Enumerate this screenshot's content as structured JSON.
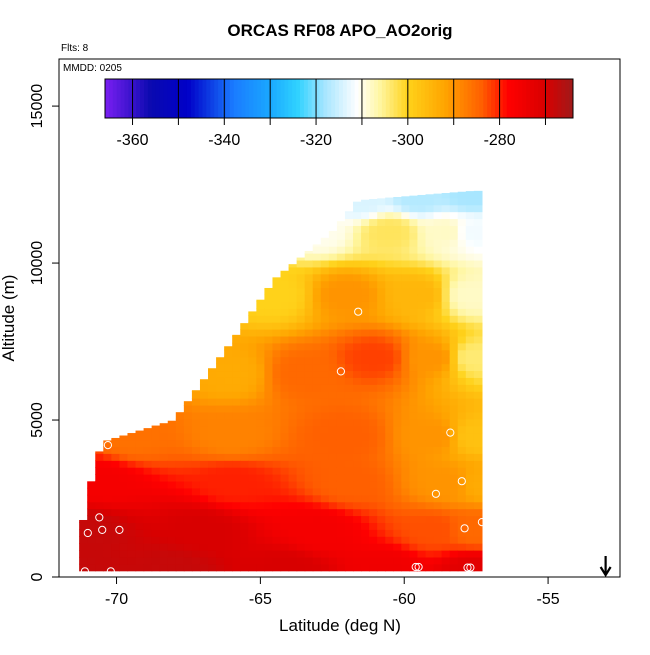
{
  "chart_data": {
    "type": "heatmap",
    "title": "ORCAS RF08 APO_AO2orig",
    "corner_note": "Flts: 8",
    "inner_note": "MMDD: 0205",
    "xlabel": "Latitude (deg N)",
    "ylabel": "Altitude (m)",
    "xlim": [
      -72,
      -52.5
    ],
    "ylim": [
      0,
      16500
    ],
    "xticks": [
      -70,
      -65,
      -60,
      -55
    ],
    "xtick_labels": [
      "-70",
      "-65",
      "-60",
      "-55"
    ],
    "yticks": [
      0,
      5000,
      10000,
      15000
    ],
    "ytick_labels": [
      "0",
      "5000",
      "10000",
      "15000"
    ],
    "colorbar": {
      "range": [
        -366,
        -264
      ],
      "ticks": [
        -360,
        -340,
        -320,
        -300,
        -280
      ],
      "tick_labels": [
        "-360",
        "-340",
        "-320",
        "-300",
        "-280"
      ],
      "stops": [
        {
          "v": -366,
          "c": "#7a1ff2"
        },
        {
          "v": -356,
          "c": "#0a0ab0"
        },
        {
          "v": -348,
          "c": "#0000c8"
        },
        {
          "v": -338,
          "c": "#1a7bff"
        },
        {
          "v": -330,
          "c": "#1aa8ff"
        },
        {
          "v": -324,
          "c": "#30d2ff"
        },
        {
          "v": -318,
          "c": "#a8e6ff"
        },
        {
          "v": -311,
          "c": "#ffffff"
        },
        {
          "v": -306,
          "c": "#fff6a0"
        },
        {
          "v": -300,
          "c": "#ffd21a"
        },
        {
          "v": -292,
          "c": "#ffa500"
        },
        {
          "v": -284,
          "c": "#ff6000"
        },
        {
          "v": -278,
          "c": "#ff0000"
        },
        {
          "v": -270,
          "c": "#d80000"
        },
        {
          "v": -264,
          "c": "#a01a1a"
        }
      ]
    },
    "field_region": {
      "lat_extent": [
        -71.3,
        -57.3
      ],
      "top_boundary": [
        [
          -71.3,
          1200
        ],
        [
          -70.8,
          3400
        ],
        [
          -70.5,
          4300
        ],
        [
          -68.0,
          5000
        ],
        [
          -66.0,
          7500
        ],
        [
          -64.5,
          9500
        ],
        [
          -62.5,
          11000
        ],
        [
          -61.6,
          12000
        ],
        [
          -59.0,
          12200
        ],
        [
          -57.6,
          12300
        ]
      ],
      "bottom_boundary": [
        [
          -71.3,
          200
        ],
        [
          -57.6,
          200
        ]
      ]
    },
    "field_values": [
      [
        -71.3,
        200,
        -268
      ],
      [
        -68.0,
        200,
        -268
      ],
      [
        -64.0,
        200,
        -270
      ],
      [
        -60.5,
        200,
        -275
      ],
      [
        -57.6,
        200,
        -272
      ],
      [
        -71.0,
        1500,
        -268
      ],
      [
        -67.0,
        1500,
        -270
      ],
      [
        -63.0,
        1500,
        -276
      ],
      [
        -59.0,
        1500,
        -283
      ],
      [
        -57.5,
        1500,
        -285
      ],
      [
        -70.5,
        3000,
        -276
      ],
      [
        -66.0,
        3000,
        -280
      ],
      [
        -62.0,
        3000,
        -284
      ],
      [
        -58.5,
        3000,
        -290
      ],
      [
        -57.3,
        3000,
        -293
      ],
      [
        -69.5,
        4500,
        -286
      ],
      [
        -66.0,
        4500,
        -288
      ],
      [
        -62.0,
        4500,
        -284
      ],
      [
        -59.0,
        4500,
        -290
      ],
      [
        -57.5,
        4500,
        -297
      ],
      [
        -66.0,
        6500,
        -293
      ],
      [
        -63.5,
        6500,
        -285
      ],
      [
        -61.0,
        7000,
        -282
      ],
      [
        -59.0,
        7000,
        -290
      ],
      [
        -57.6,
        7000,
        -304
      ],
      [
        -64.5,
        9000,
        -300
      ],
      [
        -62.0,
        9000,
        -290
      ],
      [
        -59.5,
        9000,
        -295
      ],
      [
        -57.7,
        9000,
        -308
      ],
      [
        -63.0,
        11000,
        -310
      ],
      [
        -60.5,
        11000,
        -303
      ],
      [
        -58.5,
        11000,
        -308
      ],
      [
        -57.6,
        11000,
        -312
      ],
      [
        -61.5,
        12000,
        -314
      ],
      [
        -59.5,
        12100,
        -317
      ],
      [
        -57.7,
        12200,
        -318
      ]
    ],
    "samples": [
      [
        -70.3,
        4200
      ],
      [
        -71.0,
        1400
      ],
      [
        -70.6,
        1900
      ],
      [
        -70.5,
        1500
      ],
      [
        -69.9,
        1500
      ],
      [
        -71.1,
        180
      ],
      [
        -70.2,
        180
      ],
      [
        -61.6,
        8450
      ],
      [
        -62.2,
        6550
      ],
      [
        -58.4,
        4600
      ],
      [
        -58.0,
        3050
      ],
      [
        -58.9,
        2650
      ],
      [
        -57.9,
        1550
      ],
      [
        -57.3,
        1750
      ],
      [
        -59.6,
        320
      ],
      [
        -59.5,
        320
      ],
      [
        -57.8,
        300
      ],
      [
        -57.7,
        300
      ]
    ],
    "arrow_lat": -53.0,
    "grid": false,
    "legend": "colorbar, top inside plot"
  }
}
